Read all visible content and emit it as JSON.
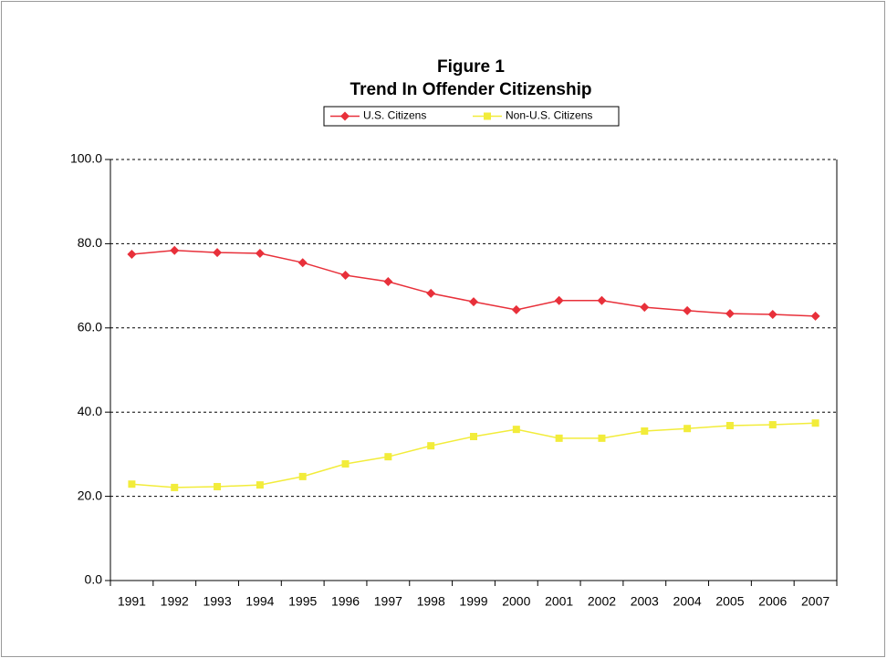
{
  "chart_data": {
    "type": "line",
    "title": "Figure 1",
    "subtitle": "Trend In Offender Citizenship",
    "categories": [
      "1991",
      "1992",
      "1993",
      "1994",
      "1995",
      "1996",
      "1997",
      "1998",
      "1999",
      "2000",
      "2001",
      "2002",
      "2003",
      "2004",
      "2005",
      "2006",
      "2007"
    ],
    "series": [
      {
        "name": "U.S. Citizens",
        "color": "#e8303a",
        "values": [
          77.5,
          78.4,
          77.9,
          77.7,
          75.5,
          72.5,
          71.0,
          68.2,
          66.2,
          64.3,
          66.5,
          66.5,
          64.9,
          64.1,
          63.4,
          63.2,
          62.8
        ]
      },
      {
        "name": "Non-U.S. Citizens",
        "color": "#f2ec3a",
        "values": [
          22.9,
          22.1,
          22.3,
          22.7,
          24.7,
          27.7,
          29.4,
          32.0,
          34.2,
          35.9,
          33.8,
          33.8,
          35.5,
          36.1,
          36.8,
          37.0,
          37.4
        ]
      }
    ],
    "ylim": [
      0,
      100
    ],
    "yticks": [
      {
        "value": 0,
        "label": "0.0"
      },
      {
        "value": 20,
        "label": "20.0"
      },
      {
        "value": 40,
        "label": "40.0"
      },
      {
        "value": 60,
        "label": "60.0"
      },
      {
        "value": 80,
        "label": "80.0"
      },
      {
        "value": 100,
        "label": "100.0"
      }
    ],
    "grid": true,
    "legend": "top"
  }
}
